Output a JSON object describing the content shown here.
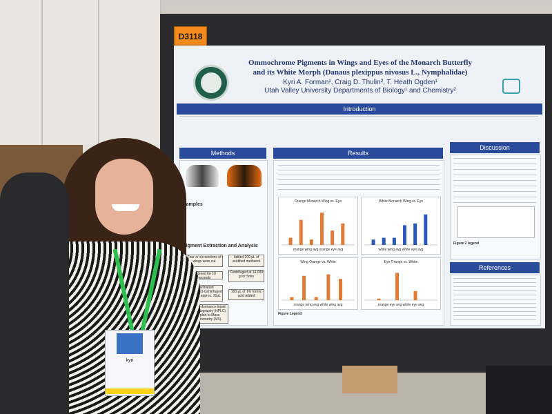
{
  "board_id": "D3118",
  "poster": {
    "title_line1": "Ommochrome Pigments in Wings and Eyes of the Monarch Butterfly",
    "title_line2": "and its White Morph (Danaus plexippus nivosus L., Nymphalidae)",
    "authors": "Kyri A. Forman¹, Craig D. Thulin², T. Heath Ogden¹",
    "affiliation": "Utah Valley University Departments of Biology¹ and Chemistry²",
    "sections": {
      "introduction": "Introduction",
      "methods": "Methods",
      "results": "Results",
      "discussion": "Discussion",
      "references": "References"
    },
    "samples_heading": "Samples",
    "pigment_heading": "Pigment Extraction and Analysis",
    "flow_boxes": [
      "Four or six sections of wings were cut",
      "Added 200 µL of acidified methanol",
      "Vortexed for 10 seconds",
      "Centrifuged at 14,000 g for 5min",
      "Supernatant Vacuumed-Centrifuged down to approx. 20µL",
      "100 µL of 1% formic acid added",
      "High-performance liquid chromatography (HPLC) coupled to Mass Spectrometry (MS)."
    ],
    "charts": [
      {
        "title": "Orange Monarch Wing vs. Eye"
      },
      {
        "title": "White Monarch Wing vs. Eye"
      },
      {
        "title": "Wing Orange vs. White"
      },
      {
        "title": "Eye Orange vs. White"
      }
    ],
    "legends": [
      "orange wing avg",
      "orange eye avg",
      "white wing avg",
      "white eye avg"
    ],
    "figure_legend": "Figure Legend",
    "figure2_legend": "Figure 2 legend"
  },
  "badge": {
    "name": "kyri"
  }
}
